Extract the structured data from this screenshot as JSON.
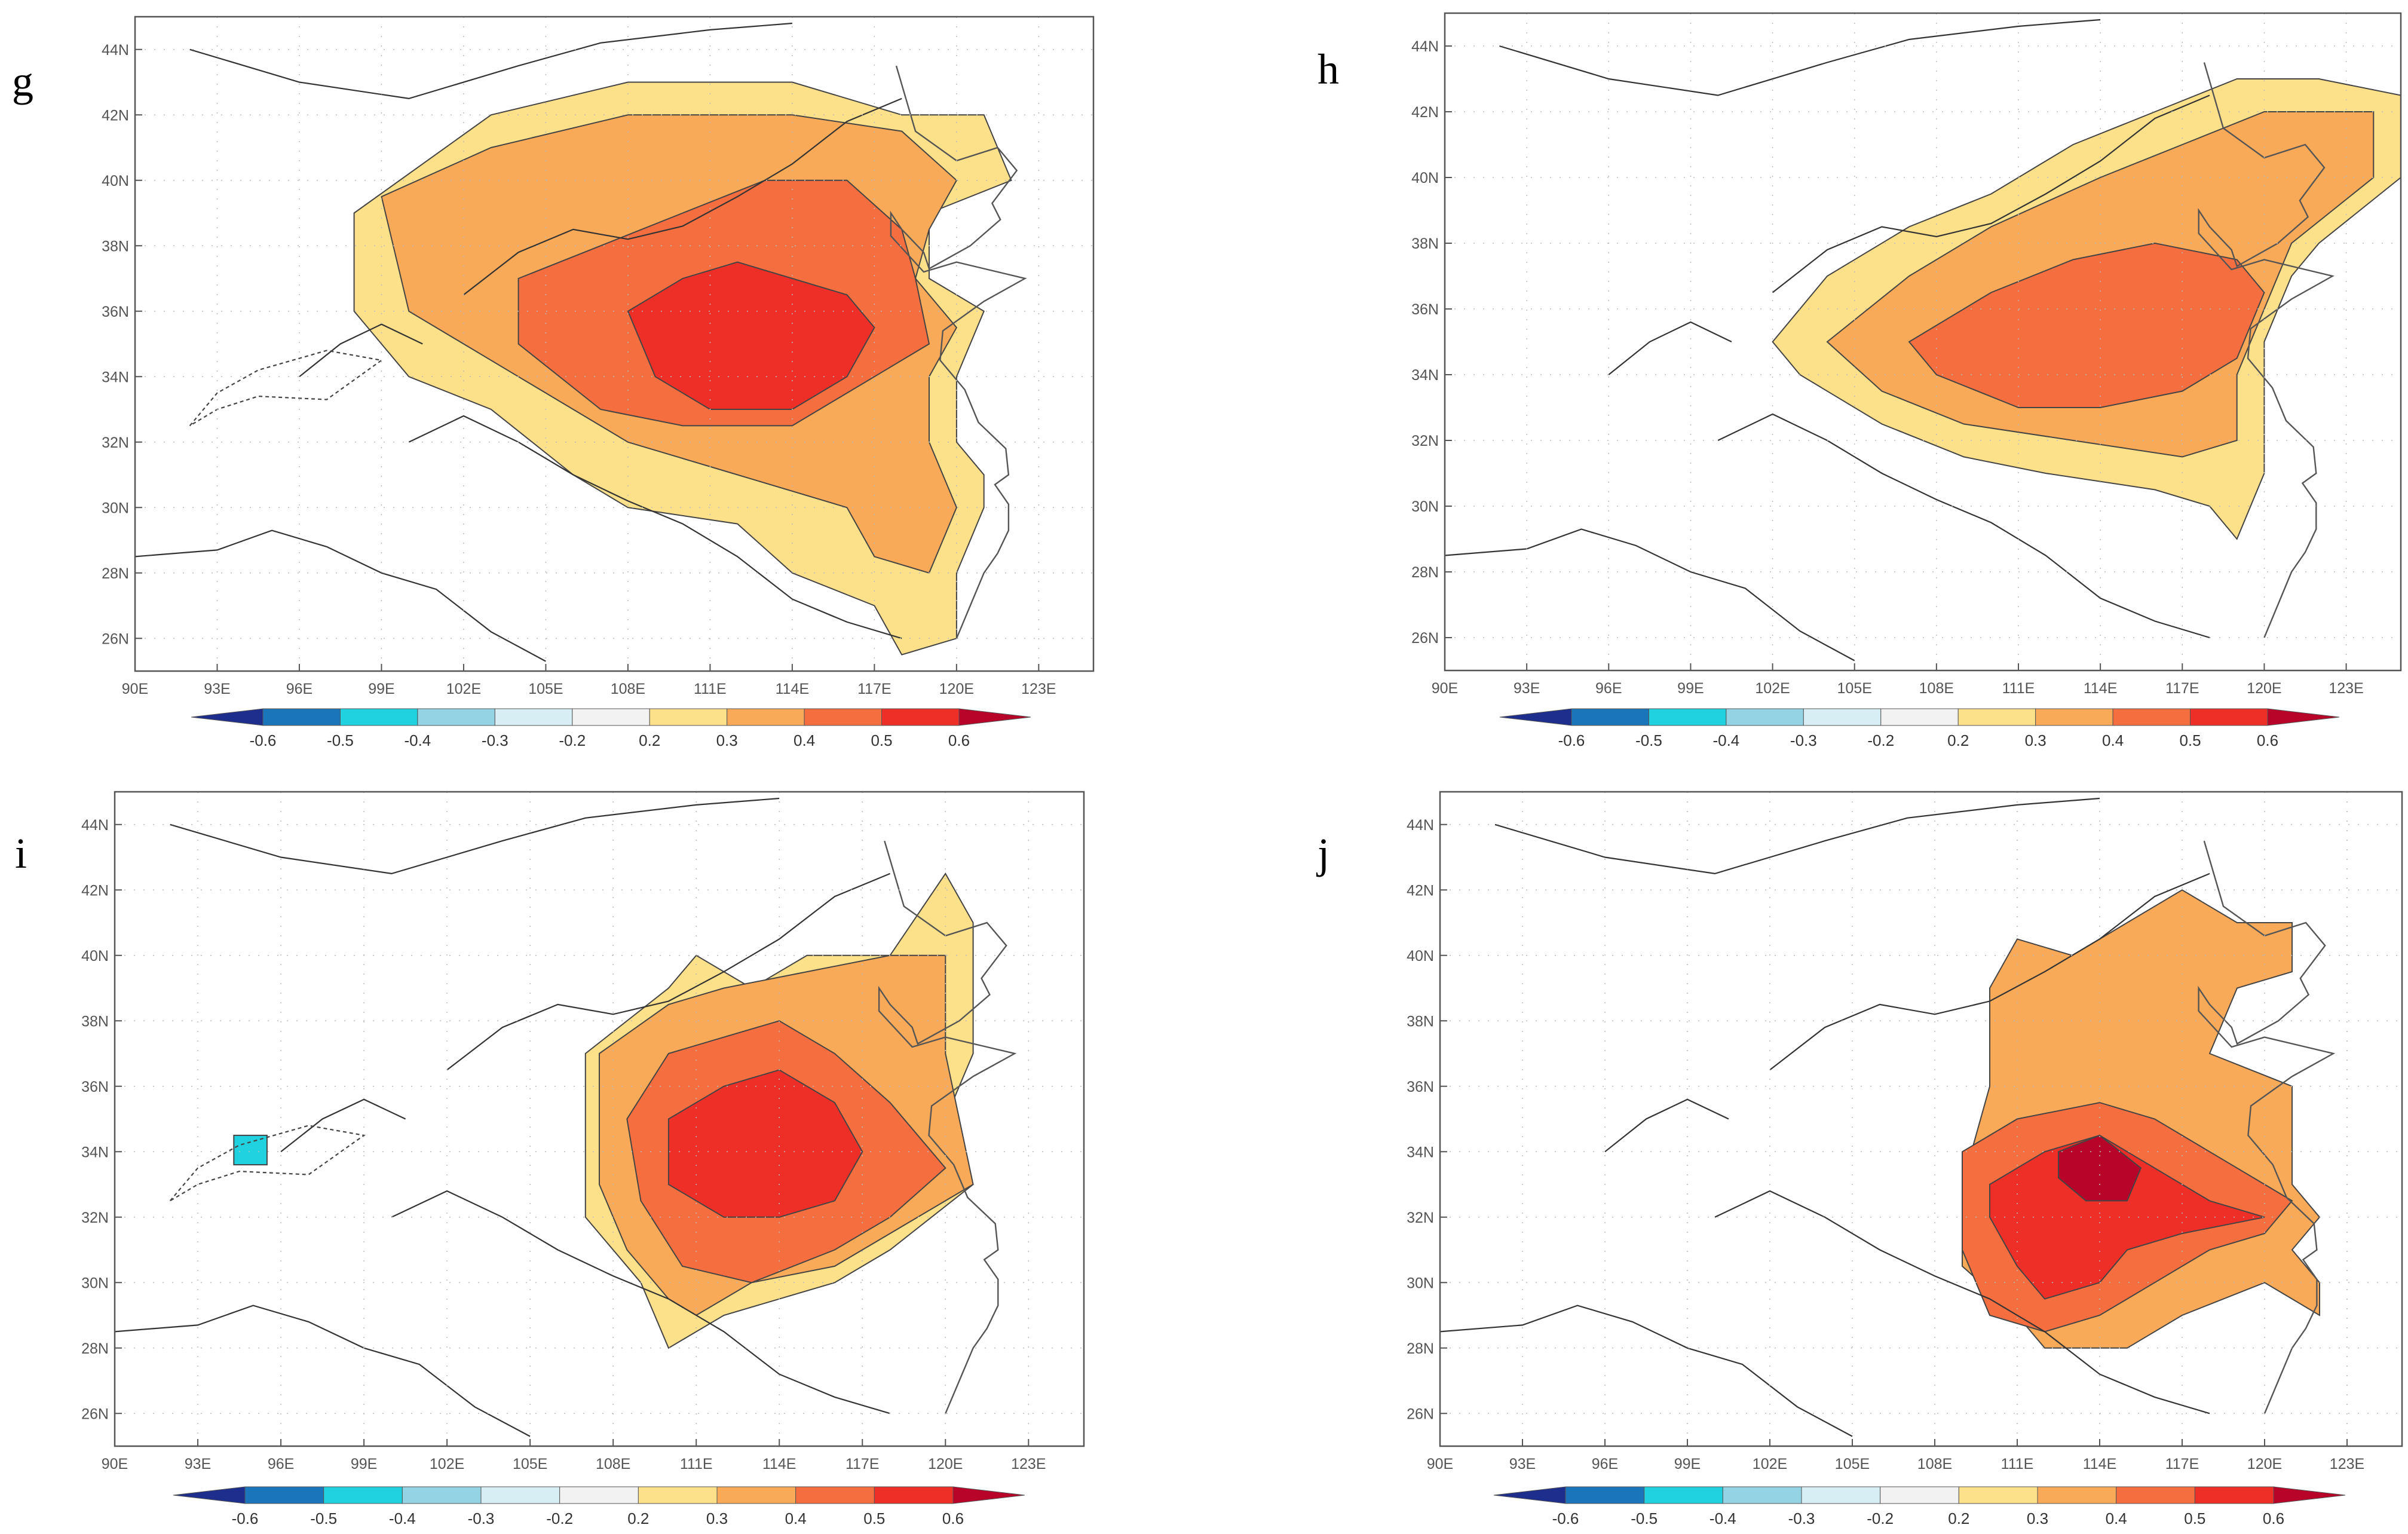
{
  "figure": {
    "panels": [
      {
        "id": "g",
        "label": "g"
      },
      {
        "id": "h",
        "label": "h"
      },
      {
        "id": "i",
        "label": "i"
      },
      {
        "id": "j",
        "label": "j"
      }
    ]
  },
  "axes": {
    "lon_labels": [
      "90E",
      "93E",
      "96E",
      "99E",
      "102E",
      "105E",
      "108E",
      "111E",
      "114E",
      "117E",
      "120E",
      "123E"
    ],
    "lat_labels": [
      "26N",
      "28N",
      "30N",
      "32N",
      "34N",
      "36N",
      "38N",
      "40N",
      "42N",
      "44N"
    ]
  },
  "colorbar": {
    "tick_labels": [
      "-0.6",
      "-0.5",
      "-0.4",
      "-0.3",
      "-0.2",
      "0.2",
      "0.3",
      "0.4",
      "0.5",
      "0.6"
    ],
    "colors": [
      "#1d2e8c",
      "#1b75bb",
      "#20d2e0",
      "#93d3e3",
      "#d7eef5",
      "#f2f2f2",
      "#fde08a",
      "#f9aa58",
      "#f46e40",
      "#ee2f28",
      "#b70428"
    ]
  },
  "chart_data": [
    {
      "type": "heatmap",
      "panel": "g",
      "title": "g",
      "lon_range": [
        90,
        125
      ],
      "lat_range": [
        25,
        45
      ],
      "levels": [
        -0.6,
        -0.5,
        -0.4,
        -0.3,
        -0.2,
        0.2,
        0.3,
        0.4,
        0.5,
        0.6
      ],
      "regions": [
        {
          "level": 0.2,
          "poly": [
            [
              98,
              39
            ],
            [
              103,
              42
            ],
            [
              108,
              43
            ],
            [
              114,
              43
            ],
            [
              118,
              42
            ],
            [
              121,
              42
            ],
            [
              122,
              40
            ],
            [
              119,
              39
            ],
            [
              119,
              37
            ],
            [
              121,
              36
            ],
            [
              120,
              34
            ],
            [
              120,
              32
            ],
            [
              121,
              31
            ],
            [
              121,
              30
            ],
            [
              120,
              28
            ],
            [
              120,
              26
            ],
            [
              118,
              25.5
            ],
            [
              117,
              27
            ],
            [
              114,
              28
            ],
            [
              112,
              29.5
            ],
            [
              108,
              30
            ],
            [
              106,
              31
            ],
            [
              103,
              33
            ],
            [
              100,
              34
            ],
            [
              98,
              36
            ]
          ]
        },
        {
          "level": 0.3,
          "poly": [
            [
              99,
              39.5
            ],
            [
              103,
              41
            ],
            [
              108,
              42
            ],
            [
              114,
              42
            ],
            [
              118,
              41.5
            ],
            [
              120,
              40
            ],
            [
              119,
              38.5
            ],
            [
              118.5,
              37
            ],
            [
              120,
              35.5
            ],
            [
              119,
              34
            ],
            [
              119,
              32
            ],
            [
              120,
              30
            ],
            [
              119,
              28
            ],
            [
              117,
              28.5
            ],
            [
              116,
              30
            ],
            [
              112,
              31
            ],
            [
              108,
              32
            ],
            [
              104,
              34
            ],
            [
              100,
              36
            ]
          ]
        },
        {
          "level": 0.4,
          "poly": [
            [
              104,
              37
            ],
            [
              107,
              38
            ],
            [
              110,
              39
            ],
            [
              113,
              40
            ],
            [
              116,
              40
            ],
            [
              118,
              38.5
            ],
            [
              118.5,
              37
            ],
            [
              119,
              35
            ],
            [
              117,
              34
            ],
            [
              114,
              32.5
            ],
            [
              110,
              32.5
            ],
            [
              107,
              33
            ],
            [
              104,
              35
            ]
          ]
        },
        {
          "level": 0.5,
          "poly": [
            [
              108,
              36
            ],
            [
              110,
              37
            ],
            [
              112,
              37.5
            ],
            [
              114,
              37
            ],
            [
              116,
              36.5
            ],
            [
              117,
              35.5
            ],
            [
              116,
              34
            ],
            [
              114,
              33
            ],
            [
              111,
              33
            ],
            [
              109,
              34
            ]
          ]
        }
      ]
    },
    {
      "type": "heatmap",
      "panel": "h",
      "title": "h",
      "lon_range": [
        90,
        125
      ],
      "lat_range": [
        25,
        45
      ],
      "levels": [
        -0.6,
        -0.5,
        -0.4,
        -0.3,
        -0.2,
        0.2,
        0.3,
        0.4,
        0.5,
        0.6
      ],
      "regions": [
        {
          "level": 0.2,
          "poly": [
            [
              102,
              35
            ],
            [
              104,
              37
            ],
            [
              107,
              38.5
            ],
            [
              110,
              39.5
            ],
            [
              113,
              41
            ],
            [
              116,
              42
            ],
            [
              119,
              43
            ],
            [
              122,
              43
            ],
            [
              125,
              42.5
            ],
            [
              125,
              40
            ],
            [
              122,
              38
            ],
            [
              121,
              37
            ],
            [
              120,
              35
            ],
            [
              120,
              33
            ],
            [
              120,
              31
            ],
            [
              119,
              29
            ],
            [
              118,
              30
            ],
            [
              116,
              30.5
            ],
            [
              112,
              31
            ],
            [
              109,
              31.5
            ],
            [
              106,
              32.5
            ],
            [
              103,
              34
            ]
          ]
        },
        {
          "level": 0.3,
          "poly": [
            [
              104,
              35
            ],
            [
              107,
              37
            ],
            [
              110,
              38.5
            ],
            [
              114,
              40
            ],
            [
              117,
              41
            ],
            [
              120,
              42
            ],
            [
              124,
              42
            ],
            [
              124,
              40
            ],
            [
              121,
              38
            ],
            [
              120,
              36
            ],
            [
              119,
              34
            ],
            [
              119,
              32
            ],
            [
              117,
              31.5
            ],
            [
              113,
              32
            ],
            [
              109,
              32.5
            ],
            [
              106,
              33.5
            ]
          ]
        },
        {
          "level": 0.4,
          "poly": [
            [
              107,
              35
            ],
            [
              110,
              36.5
            ],
            [
              113,
              37.5
            ],
            [
              116,
              38
            ],
            [
              119,
              37.5
            ],
            [
              120,
              36.5
            ],
            [
              119,
              34.5
            ],
            [
              117,
              33.5
            ],
            [
              114,
              33
            ],
            [
              111,
              33
            ],
            [
              108,
              34
            ]
          ]
        }
      ]
    },
    {
      "type": "heatmap",
      "panel": "i",
      "title": "i",
      "lon_range": [
        90,
        125
      ],
      "lat_range": [
        25,
        45
      ],
      "levels": [
        -0.6,
        -0.5,
        -0.4,
        -0.3,
        -0.2,
        0.2,
        0.3,
        0.4,
        0.5,
        0.6
      ],
      "regions": [
        {
          "level": 0.2,
          "poly": [
            [
              107,
              37
            ],
            [
              110,
              39
            ],
            [
              111,
              40
            ],
            [
              113,
              39
            ],
            [
              115,
              40
            ],
            [
              118,
              40
            ],
            [
              120,
              42.5
            ],
            [
              121,
              41
            ],
            [
              121,
              39
            ],
            [
              121,
              37
            ],
            [
              120,
              35
            ],
            [
              121,
              33
            ],
            [
              118,
              31
            ],
            [
              116,
              30
            ],
            [
              112,
              29
            ],
            [
              110,
              28
            ],
            [
              109,
              30
            ],
            [
              107,
              32
            ]
          ]
        },
        {
          "level": 0.3,
          "poly": [
            [
              107.5,
              37
            ],
            [
              110,
              38.5
            ],
            [
              112,
              39
            ],
            [
              115,
              39.5
            ],
            [
              118,
              40
            ],
            [
              120,
              40
            ],
            [
              120,
              37
            ],
            [
              121,
              33
            ],
            [
              118,
              31.5
            ],
            [
              116,
              30.5
            ],
            [
              113,
              30
            ],
            [
              111,
              29
            ],
            [
              110,
              29.5
            ],
            [
              108.5,
              31
            ],
            [
              107.5,
              33
            ]
          ]
        },
        {
          "level": 0.4,
          "poly": [
            [
              108.5,
              35
            ],
            [
              110,
              37
            ],
            [
              112,
              37.5
            ],
            [
              114,
              38
            ],
            [
              116,
              37
            ],
            [
              118,
              35.5
            ],
            [
              120,
              33.5
            ],
            [
              118,
              32
            ],
            [
              116,
              31
            ],
            [
              113,
              30
            ],
            [
              110.5,
              30.5
            ],
            [
              109,
              32.5
            ]
          ]
        },
        {
          "level": 0.5,
          "poly": [
            [
              110,
              35
            ],
            [
              112,
              36
            ],
            [
              114,
              36.5
            ],
            [
              116,
              35.5
            ],
            [
              117,
              34
            ],
            [
              116,
              32.5
            ],
            [
              114,
              32
            ],
            [
              112,
              32
            ],
            [
              110,
              33
            ]
          ]
        },
        {
          "level": -0.4,
          "poly": [
            [
              94.3,
              34.5
            ],
            [
              95.5,
              34.5
            ],
            [
              95.5,
              33.6
            ],
            [
              94.3,
              33.6
            ]
          ]
        }
      ]
    },
    {
      "type": "heatmap",
      "panel": "j",
      "title": "j",
      "lon_range": [
        90,
        125
      ],
      "lat_range": [
        25,
        45
      ],
      "levels": [
        -0.6,
        -0.5,
        -0.4,
        -0.3,
        -0.2,
        0.2,
        0.3,
        0.4,
        0.5,
        0.6
      ],
      "regions": [
        {
          "level": 0.3,
          "poly": [
            [
              110,
              39
            ],
            [
              111,
              40.5
            ],
            [
              113,
              40
            ],
            [
              115,
              41
            ],
            [
              117,
              42
            ],
            [
              119,
              41
            ],
            [
              121,
              41
            ],
            [
              121,
              39.5
            ],
            [
              119,
              39
            ],
            [
              118,
              37
            ],
            [
              121,
              36
            ],
            [
              121,
              33
            ],
            [
              122,
              32
            ],
            [
              121,
              31
            ],
            [
              122,
              30
            ],
            [
              122,
              29
            ],
            [
              120,
              30
            ],
            [
              117,
              29
            ],
            [
              115,
              28
            ],
            [
              112,
              28
            ],
            [
              111,
              29
            ],
            [
              109,
              30.5
            ],
            [
              109,
              33
            ],
            [
              110,
              36
            ]
          ]
        },
        {
          "level": 0.4,
          "poly": [
            [
              109,
              34
            ],
            [
              111,
              35
            ],
            [
              114,
              35.5
            ],
            [
              116,
              35
            ],
            [
              118,
              34
            ],
            [
              120,
              33
            ],
            [
              121,
              32.5
            ],
            [
              120,
              31.5
            ],
            [
              118,
              31
            ],
            [
              116,
              30
            ],
            [
              114,
              29
            ],
            [
              112,
              28.5
            ],
            [
              110,
              29
            ],
            [
              109,
              31
            ]
          ]
        },
        {
          "level": 0.5,
          "poly": [
            [
              110,
              33
            ],
            [
              112,
              34
            ],
            [
              114,
              34.5
            ],
            [
              116,
              33.5
            ],
            [
              118,
              32.5
            ],
            [
              120,
              32
            ],
            [
              117,
              31.5
            ],
            [
              115,
              31
            ],
            [
              114,
              30
            ],
            [
              112,
              29.5
            ],
            [
              111,
              30.5
            ],
            [
              110,
              32
            ]
          ]
        },
        {
          "level": 0.6,
          "poly": [
            [
              112.5,
              34
            ],
            [
              114,
              34.5
            ],
            [
              115.5,
              33.5
            ],
            [
              115,
              32.5
            ],
            [
              113.5,
              32.5
            ],
            [
              112.5,
              33.2
            ]
          ]
        }
      ]
    }
  ]
}
